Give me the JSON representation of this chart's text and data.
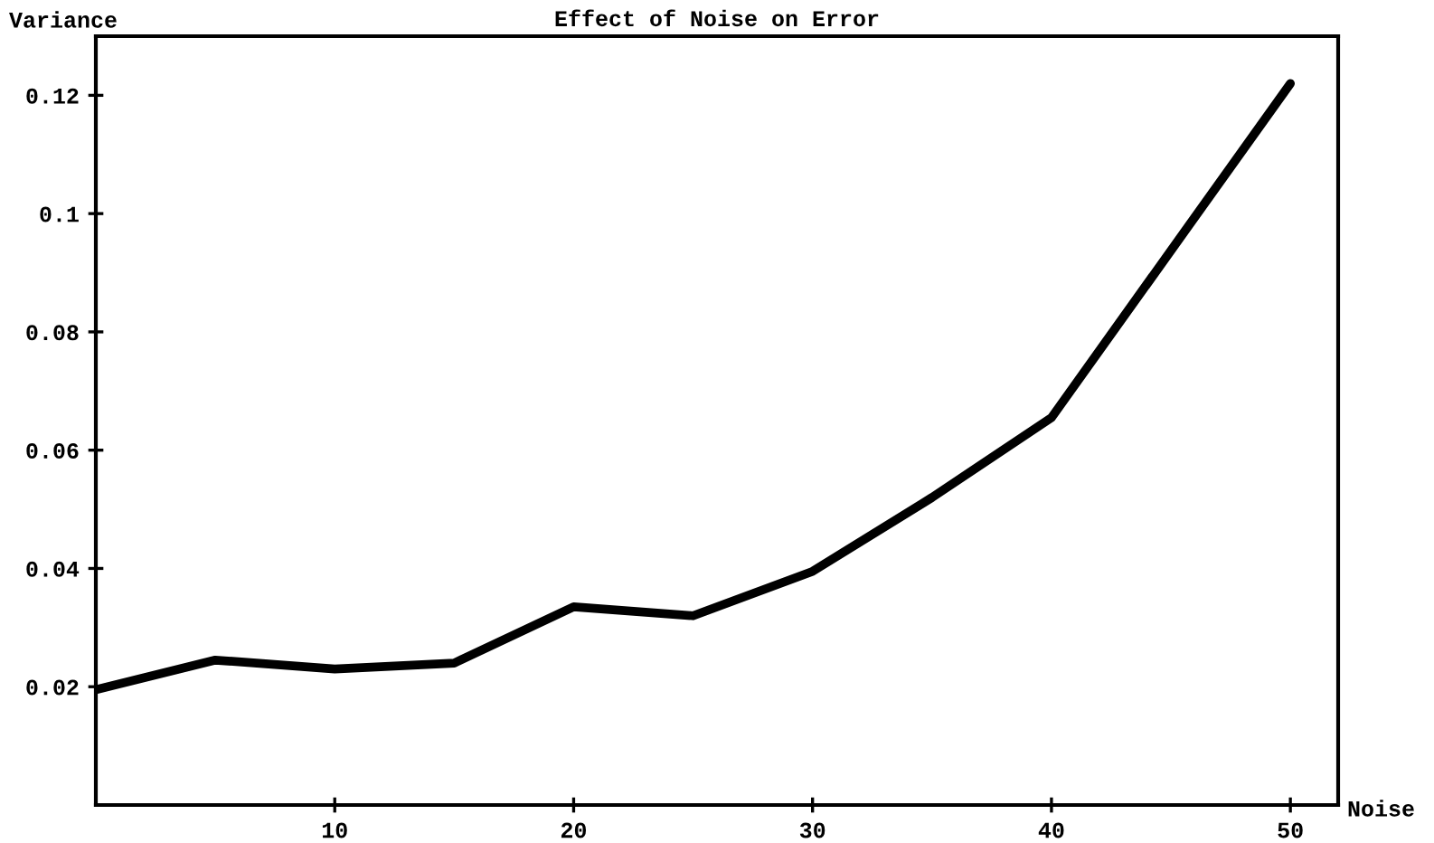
{
  "chart_data": {
    "type": "line",
    "title": "Effect of Noise on Error",
    "xlabel": "Noise",
    "ylabel": "Variance",
    "x": [
      0,
      5,
      10,
      15,
      20,
      25,
      30,
      35,
      40,
      50
    ],
    "series": [
      {
        "color": "#000000",
        "values": [
          0.0195,
          0.0245,
          0.023,
          0.024,
          0.0335,
          0.032,
          0.0395,
          0.052,
          0.0655,
          0.122
        ]
      }
    ],
    "xlim": [
      0,
      52
    ],
    "ylim": [
      0,
      0.13
    ],
    "xticks": [
      10,
      20,
      30,
      40,
      50
    ],
    "yticks": [
      0.02,
      0.04,
      0.06,
      0.08,
      0.1,
      0.12
    ],
    "grid": false,
    "legend": false,
    "marker": "none",
    "line_style": "solid"
  }
}
